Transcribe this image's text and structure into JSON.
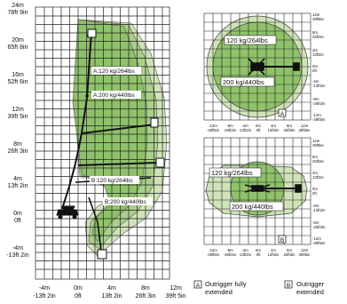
{
  "side_view": {
    "y_axis_labels": [
      {
        "m": "24m",
        "ft": "78ft 9in"
      },
      {
        "m": "20m",
        "ft": "65ft 8in"
      },
      {
        "m": "16m",
        "ft": "52ft 6in"
      },
      {
        "m": "12m",
        "ft": "39ft 5in"
      },
      {
        "m": "8m",
        "ft": "26ft 3in"
      },
      {
        "m": "4m",
        "ft": "13ft 2in"
      },
      {
        "m": "0m",
        "ft": "0ft"
      },
      {
        "m": "-4m",
        "ft": "-13ft 2in"
      }
    ],
    "x_axis_labels": [
      {
        "m": "-4m",
        "ft": "-13ft 2in"
      },
      {
        "m": "0m",
        "ft": "0ft"
      },
      {
        "m": "4m",
        "ft": "13ft 2in"
      },
      {
        "m": "8m",
        "ft": "26ft 3in"
      },
      {
        "m": "12m",
        "ft": "39ft 5in"
      }
    ],
    "load_labels": [
      "A:120 kg/264lbs",
      "A:200 kg/440lbs",
      "B:120 kg/264lbs",
      "B:200 kg/440lbs"
    ]
  },
  "top_view_a": {
    "outer_label": "120 kg/264lbs",
    "inner_label": "200 kg/440lbs",
    "badge": "A",
    "y_axis_labels": [
      {
        "m": "12m",
        "ft": "39ft5in"
      },
      {
        "m": "8m",
        "ft": "26ft3in"
      },
      {
        "m": "4m",
        "ft": "13ft2in"
      },
      {
        "m": "0m",
        "ft": "0ft"
      },
      {
        "m": "-4m",
        "ft": "-13ft2in"
      },
      {
        "m": "-8m",
        "ft": "-26ft3in"
      },
      {
        "m": "-12m",
        "ft": "-39ft5in"
      }
    ],
    "x_axis_labels": [
      {
        "m": "-12m",
        "ft": "-39ft5in"
      },
      {
        "m": "-8m",
        "ft": "-26ft3in"
      },
      {
        "m": "-4m",
        "ft": "-13ft2in"
      },
      {
        "m": "0m",
        "ft": "0ft"
      },
      {
        "m": "4m",
        "ft": "13ft2in"
      },
      {
        "m": "8m",
        "ft": "26ft3in"
      },
      {
        "m": "12m",
        "ft": "39ft5in"
      }
    ]
  },
  "top_view_b": {
    "outer_label": "120 kg/264lbs",
    "inner_label": "200 kg/440lbs",
    "badge": "B",
    "y_axis_labels": [
      {
        "m": "12m",
        "ft": "39ft5in"
      },
      {
        "m": "8m",
        "ft": "26ft3in"
      },
      {
        "m": "4m",
        "ft": "13ft2in"
      },
      {
        "m": "0m",
        "ft": "0ft"
      },
      {
        "m": "-4m",
        "ft": "-13ft2in"
      },
      {
        "m": "-8m",
        "ft": "-26ft3in"
      },
      {
        "m": "-12m",
        "ft": "-39ft5in"
      }
    ],
    "x_axis_labels": [
      {
        "m": "-12m",
        "ft": "-39ft5in"
      },
      {
        "m": "-8m",
        "ft": "-26ft3in"
      },
      {
        "m": "-4m",
        "ft": "-13ft2in"
      },
      {
        "m": "0m",
        "ft": "0ft"
      },
      {
        "m": "4m",
        "ft": "13ft2in"
      },
      {
        "m": "8m",
        "ft": "26ft3in"
      },
      {
        "m": "12m",
        "ft": "39ft5in"
      }
    ]
  },
  "legend": {
    "a_badge": "A",
    "a_line1": "Outrigger fully",
    "a_line2": "extended",
    "b_badge": "B",
    "b_line1": "Outrigger",
    "b_line2": "extended"
  },
  "colors": {
    "envelope_fill": "#8fc26a",
    "envelope_light": "#cfe3b8",
    "grid_line": "#222222"
  }
}
